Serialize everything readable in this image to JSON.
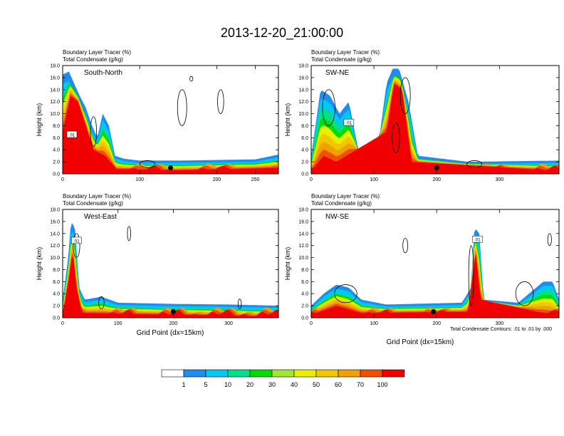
{
  "title": "2013-12-20_21:00:00",
  "contour_note": "Total Condensate Contours: .01 to .01 by .000",
  "x_axis_label": "Grid Point (dx=15km)",
  "y_axis_label": "Height (km)",
  "contour_label": ".01",
  "colorbar": {
    "colors": [
      "#ffffff",
      "#1e8cf0",
      "#00c8f0",
      "#00e08c",
      "#00dc00",
      "#a0e632",
      "#e6f000",
      "#f0c800",
      "#f0a000",
      "#f05000",
      "#f00000"
    ],
    "labels": [
      "1",
      "5",
      "10",
      "20",
      "30",
      "40",
      "50",
      "60",
      "70",
      "100"
    ]
  },
  "chart_data": [
    {
      "type": "heatmap",
      "panel": "South-North",
      "label_left": "Boundary Layer Tracer   (%)",
      "label_left2": "Total Condensate   (g/kg)",
      "xlim": [
        0,
        280
      ],
      "ylim": [
        0,
        18
      ],
      "xticks": [
        0,
        100,
        200,
        250
      ],
      "yticks": [
        "0.0",
        "2.0",
        "4.0",
        "6.0",
        "8.0",
        "10.0",
        "12.0",
        "14.0",
        "16.0",
        "18.0"
      ],
      "tracer_top_km": [
        [
          0,
          16.5
        ],
        [
          8,
          17
        ],
        [
          15,
          15
        ],
        [
          22,
          13
        ],
        [
          30,
          11
        ],
        [
          38,
          8
        ],
        [
          45,
          6
        ],
        [
          52,
          10
        ],
        [
          60,
          8
        ],
        [
          68,
          3
        ],
        [
          80,
          2.5
        ],
        [
          100,
          2.2
        ],
        [
          150,
          2.2
        ],
        [
          200,
          2.3
        ],
        [
          250,
          2.4
        ],
        [
          280,
          3.2
        ]
      ],
      "core_top_km": [
        [
          0,
          8
        ],
        [
          10,
          14
        ],
        [
          20,
          13
        ],
        [
          30,
          9
        ],
        [
          40,
          5
        ],
        [
          55,
          4
        ],
        [
          70,
          1.8
        ],
        [
          150,
          1.6
        ],
        [
          280,
          2
        ]
      ],
      "marker_x": 140
    },
    {
      "type": "heatmap",
      "panel": "SW-NE",
      "label_left": "Boundary Layer Tracer   (%)",
      "label_left2": "Total Condensate   (g/kg)",
      "xlim": [
        0,
        395
      ],
      "ylim": [
        0,
        18
      ],
      "xticks": [
        0,
        100,
        200,
        300
      ],
      "yticks": [
        "0.0",
        "2.0",
        "4.0",
        "6.0",
        "8.0",
        "10.0",
        "12.0",
        "14.0",
        "16.0",
        "18.0"
      ],
      "tracer_top_km": [
        [
          0,
          3
        ],
        [
          15,
          14
        ],
        [
          30,
          13
        ],
        [
          45,
          10
        ],
        [
          60,
          12
        ],
        [
          75,
          4
        ],
        [
          95,
          3
        ],
        [
          110,
          7
        ],
        [
          120,
          15
        ],
        [
          130,
          17.5
        ],
        [
          140,
          17.5
        ],
        [
          155,
          12
        ],
        [
          170,
          3
        ],
        [
          250,
          2
        ],
        [
          395,
          2.2
        ]
      ],
      "core_top_km": [
        [
          0,
          1.5
        ],
        [
          20,
          4
        ],
        [
          40,
          3
        ],
        [
          120,
          8
        ],
        [
          132,
          16
        ],
        [
          145,
          15
        ],
        [
          160,
          3
        ],
        [
          395,
          1.5
        ]
      ],
      "marker_x": 200
    },
    {
      "type": "heatmap",
      "panel": "West-East",
      "label_left": "Boundary Layer Tracer   (%)",
      "label_left2": "Total Condensate   (g/kg)",
      "xlim": [
        0,
        390
      ],
      "ylim": [
        0,
        18
      ],
      "xticks": [
        0,
        100,
        200,
        300
      ],
      "yticks": [
        "0.0",
        "2.0",
        "4.0",
        "6.0",
        "8.0",
        "10.0",
        "12.0",
        "14.0",
        "16.0",
        "18.0"
      ],
      "tracer_top_km": [
        [
          0,
          3
        ],
        [
          10,
          10
        ],
        [
          15,
          16
        ],
        [
          22,
          15
        ],
        [
          30,
          5
        ],
        [
          40,
          3
        ],
        [
          70,
          3.5
        ],
        [
          100,
          2.5
        ],
        [
          200,
          2.3
        ],
        [
          300,
          2.2
        ],
        [
          390,
          2
        ]
      ],
      "core_top_km": [
        [
          0,
          1.5
        ],
        [
          12,
          8
        ],
        [
          18,
          12
        ],
        [
          25,
          6
        ],
        [
          35,
          1.8
        ],
        [
          390,
          1.2
        ]
      ],
      "marker_x": 200
    },
    {
      "type": "heatmap",
      "panel": "NW-SE",
      "label_left": "Boundary Layer Tracer   (%)",
      "label_left2": "Total Condensate   (g/kg)",
      "xlim": [
        0,
        395
      ],
      "ylim": [
        0,
        18
      ],
      "xticks": [
        0,
        100,
        200,
        300
      ],
      "yticks": [
        "0.0",
        "2.0",
        "4.0",
        "6.0",
        "8.0",
        "10.0",
        "12.0",
        "14.0",
        "16.0",
        "18.0"
      ],
      "tracer_top_km": [
        [
          0,
          2
        ],
        [
          20,
          4
        ],
        [
          40,
          5.5
        ],
        [
          60,
          5
        ],
        [
          80,
          3
        ],
        [
          120,
          2.2
        ],
        [
          240,
          2.5
        ],
        [
          255,
          5
        ],
        [
          260,
          15
        ],
        [
          268,
          14
        ],
        [
          275,
          3
        ],
        [
          330,
          2.5
        ],
        [
          370,
          6
        ],
        [
          385,
          6
        ],
        [
          395,
          3
        ]
      ],
      "core_top_km": [
        [
          0,
          1.5
        ],
        [
          40,
          3
        ],
        [
          80,
          1.8
        ],
        [
          250,
          2
        ],
        [
          262,
          12
        ],
        [
          270,
          4
        ],
        [
          360,
          2
        ],
        [
          395,
          1.5
        ]
      ],
      "marker_x": 195
    }
  ]
}
